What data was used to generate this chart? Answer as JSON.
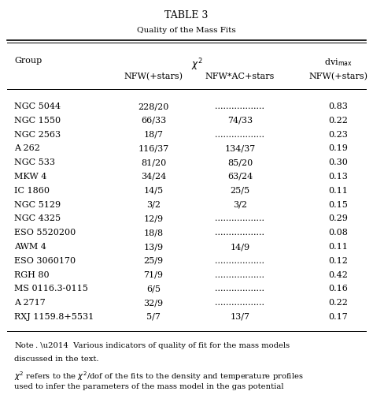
{
  "title": "TABLE 3",
  "subtitle": "Quality of the mass fits",
  "rows": [
    [
      "NGC 5044",
      "228/20",
      "..................",
      "0.83"
    ],
    [
      "NGC 1550",
      "66/33",
      "74/33",
      "0.22"
    ],
    [
      "NGC 2563",
      "18/7",
      "..................",
      "0.23"
    ],
    [
      "A 262",
      "116/37",
      "134/37",
      "0.19"
    ],
    [
      "NGC 533",
      "81/20",
      "85/20",
      "0.30"
    ],
    [
      "MKW 4",
      "34/24",
      "63/24",
      "0.13"
    ],
    [
      "IC 1860",
      "14/5",
      "25/5",
      "0.11"
    ],
    [
      "NGC 5129",
      "3/2",
      "3/2",
      "0.15"
    ],
    [
      "NGC 4325",
      "12/9",
      "..................",
      "0.29"
    ],
    [
      "ESO 5520200",
      "18/8",
      "..................",
      "0.08"
    ],
    [
      "AWM 4",
      "13/9",
      "14/9",
      "0.11"
    ],
    [
      "ESO 3060170",
      "25/9",
      "..................",
      "0.12"
    ],
    [
      "RGH 80",
      "71/9",
      "..................",
      "0.42"
    ],
    [
      "MS 0116.3-0115",
      "6/5",
      "..................",
      "0.16"
    ],
    [
      "A 2717",
      "32/9",
      "..................",
      "0.22"
    ],
    [
      "RXJ 1159.8+5531",
      "5/7",
      "13/7",
      "0.17"
    ]
  ],
  "bg_color": "#ffffff",
  "text_color": "#000000",
  "fs_title": 9.0,
  "fs_subtitle": 7.5,
  "fs_table": 8.0,
  "fs_note": 7.2
}
